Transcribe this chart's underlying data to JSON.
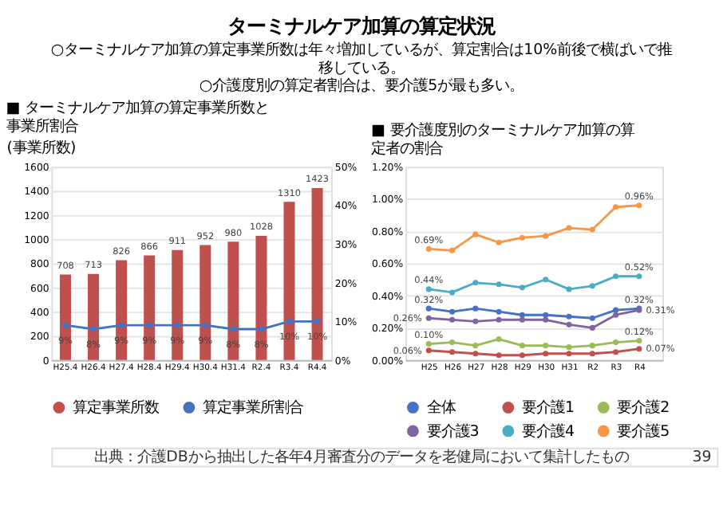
{
  "chart_data": [
    {
      "type": "bar",
      "title": "■ ターミナルケア加算の算定事業所数と事業所割合",
      "ylabel": "(事業所数)",
      "annotations": [
        "ターミナルケア加算の算定状況",
        "○ターミナルケア加算の算定事業所数は年々増加しているが、算定割合は10%前後で横ばいで推移している。",
        "○介護度別の算定者割合は、要介護5が最も多い。"
      ],
      "categories": [
        "H25.4",
        "H26.4",
        "H27.4",
        "H28.4",
        "H29.4",
        "H30.4",
        "H31.4",
        "R2.4",
        "R3.4",
        "R4.4"
      ],
      "series": [
        {
          "name": "算定事業所数",
          "type": "bar",
          "color": "#c0504d",
          "values": [
            708,
            713,
            826,
            866,
            911,
            952,
            980,
            1028,
            1310,
            1423
          ],
          "value_labels": [
            "708",
            "713",
            "826",
            "866",
            "911",
            "952",
            "980",
            "1028",
            "1310",
            "1423"
          ]
        },
        {
          "name": "算定事業所割合",
          "type": "line",
          "axis": "y2",
          "color": "#4472c4",
          "marker": "circle",
          "values": [
            9,
            8,
            9,
            9,
            9,
            9,
            8,
            8,
            10,
            10
          ],
          "value_labels": [
            "9%",
            "8%",
            "9%",
            "9%",
            "9%",
            "9%",
            "8%",
            "8%",
            "10%",
            "10%"
          ]
        }
      ],
      "ylim": [
        0,
        1600
      ],
      "yticks": [
        0,
        200,
        400,
        600,
        800,
        1000,
        1200,
        1400,
        {
          "value": 1600,
          "label": "1600"
        }
      ],
      "y2lim": [
        0,
        50
      ],
      "y2ticks": [
        {
          "value": 0,
          "label": "0%"
        },
        {
          "value": 10,
          "label": "10%"
        },
        {
          "value": 20,
          "label": "20%"
        },
        {
          "value": 30,
          "label": "30%"
        },
        {
          "value": 40,
          "label": "40%"
        },
        {
          "value": 50,
          "label": "50%"
        }
      ],
      "grid": "y",
      "legend": "bottom"
    },
    {
      "type": "line",
      "title": "■ 要介護度別のターミナルケア加算の算定者の割合",
      "annotations": [
        "出典：介護DBから抽出した各年4月審査分のデータを老健局において集計したもの",
        "39"
      ],
      "categories": [
        "H25",
        "H26",
        "H27",
        "H28",
        "H29",
        "H30",
        "H31",
        "R2",
        "R3",
        "R4"
      ],
      "series": [
        {
          "name": "全体",
          "color": "#4472c4",
          "values": [
            0.32,
            0.3,
            0.32,
            0.3,
            0.28,
            0.28,
            0.27,
            0.26,
            0.31,
            0.32
          ],
          "value_labels": [
            "0.32%",
            null,
            null,
            null,
            null,
            null,
            null,
            null,
            null,
            "0.32%"
          ]
        },
        {
          "name": "要介護1",
          "color": "#c0504d",
          "values": [
            0.06,
            0.05,
            0.04,
            0.03,
            0.03,
            0.04,
            0.04,
            0.04,
            0.05,
            0.07
          ],
          "value_labels": [
            "0.06%",
            null,
            null,
            null,
            null,
            null,
            null,
            null,
            null,
            "0.07%"
          ]
        },
        {
          "name": "要介護2",
          "color": "#9bbb59",
          "values": [
            0.1,
            0.11,
            0.09,
            0.13,
            0.09,
            0.09,
            0.08,
            0.09,
            0.11,
            0.12
          ],
          "value_labels": [
            "0.10%",
            null,
            null,
            null,
            null,
            null,
            null,
            null,
            null,
            "0.12%"
          ]
        },
        {
          "name": "要介護3",
          "color": "#8064a2",
          "values": [
            0.26,
            0.25,
            0.24,
            0.25,
            0.25,
            0.25,
            0.22,
            0.2,
            0.28,
            0.31
          ],
          "value_labels": [
            "0.26%",
            null,
            null,
            null,
            null,
            null,
            null,
            null,
            null,
            "0.31%"
          ]
        },
        {
          "name": "要介護4",
          "color": "#4bacc6",
          "values": [
            0.44,
            0.42,
            0.48,
            0.47,
            0.45,
            0.5,
            0.44,
            0.46,
            0.52,
            0.52
          ],
          "value_labels": [
            "0.44%",
            null,
            null,
            null,
            null,
            null,
            null,
            null,
            null,
            "0.52%"
          ]
        },
        {
          "name": "要介護5",
          "color": "#f79646",
          "values": [
            0.69,
            0.68,
            0.78,
            0.73,
            0.76,
            0.77,
            0.82,
            0.81,
            0.95,
            0.96
          ],
          "value_labels": [
            "0.69%",
            null,
            null,
            null,
            null,
            null,
            null,
            null,
            null,
            "0.96%"
          ]
        }
      ],
      "ylim": [
        0,
        1.2
      ],
      "yticks": [
        {
          "value": 0,
          "label": "0.00%"
        },
        {
          "value": 0.2,
          "label": "0.20%"
        },
        {
          "value": 0.4,
          "label": "0.40%"
        },
        {
          "value": 0.6,
          "label": "0.60%"
        },
        {
          "value": 0.8,
          "label": "0.80%"
        },
        {
          "value": 1.0,
          "label": "1.00%"
        },
        {
          "value": 1.2,
          "label": "1.20%"
        }
      ],
      "marker": "circle",
      "grid": "y",
      "legend": "bottom"
    }
  ]
}
